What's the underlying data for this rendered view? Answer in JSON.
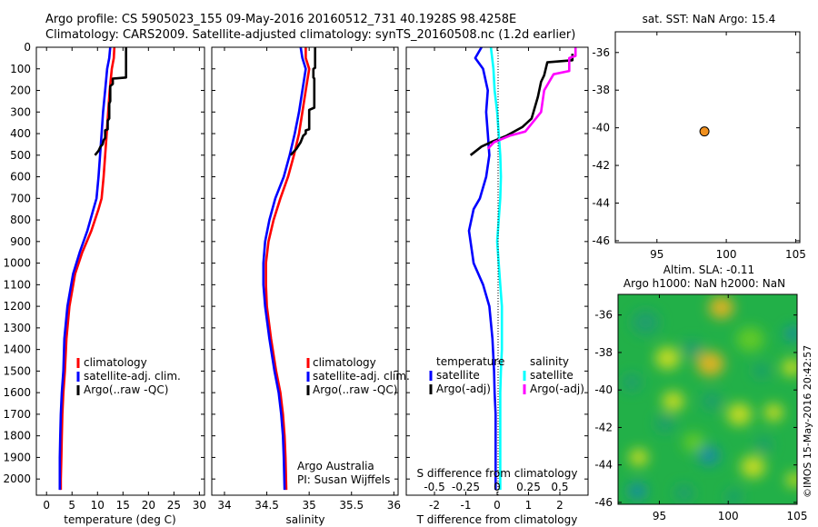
{
  "header": {
    "title": "Argo profile: CS 5905023_155 09-May-2016 20160512_731 40.1928S 98.4258E",
    "subtitle": "Climatology: CARS2009. Satellite-adjusted climatology: synTS_20160508.nc (1.2d earlier)"
  },
  "credit": {
    "line1": "Argo Australia",
    "line2": "PI: Susan Wijffels"
  },
  "stamp": "©IMOS 15-May-2016 20:42:57",
  "colors": {
    "climatology": "#ff0000",
    "satellite": "#0000ff",
    "argo": "#000000",
    "salinity_sat": "#00ffff",
    "salinity_argo": "#ff00ff"
  },
  "chart_data": [
    {
      "id": "temperature",
      "type": "line",
      "xlabel": "temperature (deg C)",
      "ylabel": "",
      "xlim": [
        -2,
        31
      ],
      "ylim": [
        2075,
        0
      ],
      "xticks": [
        0,
        5,
        10,
        15,
        20,
        25,
        30
      ],
      "xtick_labels": [
        "0",
        "5",
        "10",
        "15",
        "20",
        "25",
        "30"
      ],
      "yticks": [
        0,
        100,
        200,
        300,
        400,
        500,
        600,
        700,
        800,
        900,
        1000,
        1100,
        1200,
        1300,
        1400,
        1500,
        1600,
        1700,
        1800,
        1900,
        2000
      ],
      "ytick_labels": [
        "0",
        "100",
        "200",
        "300",
        "400",
        "500",
        "600",
        "700",
        "800",
        "900",
        "1000",
        "1100",
        "1200",
        "1300",
        "1400",
        "1500",
        "1600",
        "1700",
        "1800",
        "1900",
        "2000"
      ],
      "legend": {
        "position": "bottom-right",
        "entries": [
          "climatology",
          "satellite-adj. clim.",
          "Argo(..raw -QC)"
        ]
      },
      "series": [
        {
          "name": "climatology",
          "color": "#ff0000",
          "x": [
            13.3,
            13.2,
            12.8,
            12.4,
            12.1,
            11.8,
            11.5,
            11.2,
            10.8,
            10.2,
            8.8,
            7.0,
            5.6,
            4.5,
            3.9,
            3.6,
            3.3,
            3.1,
            3.0,
            2.9,
            2.8,
            2.8
          ],
          "y": [
            0,
            50,
            100,
            200,
            300,
            400,
            500,
            600,
            700,
            750,
            850,
            950,
            1050,
            1200,
            1350,
            1500,
            1600,
            1700,
            1800,
            1900,
            2000,
            2050
          ]
        },
        {
          "name": "satellite-adj. clim.",
          "color": "#0000ff",
          "x": [
            12.5,
            12.3,
            11.9,
            11.5,
            11.1,
            10.8,
            10.5,
            10.2,
            9.8,
            9.2,
            8.0,
            6.5,
            5.2,
            4.1,
            3.5,
            3.3,
            3.0,
            2.8,
            2.7,
            2.6,
            2.6,
            2.6
          ],
          "y": [
            0,
            50,
            100,
            200,
            300,
            400,
            500,
            600,
            700,
            750,
            850,
            950,
            1050,
            1200,
            1350,
            1500,
            1600,
            1700,
            1800,
            1900,
            2000,
            2050
          ]
        },
        {
          "name": "Argo(..raw -QC)",
          "color": "#000000",
          "x": [
            15.6,
            15.6,
            15.6,
            15.6,
            13.0,
            13.0,
            12.5,
            12.5,
            12.3,
            12.3,
            12.0,
            12.0,
            11.5,
            11.5,
            11.2,
            11.0,
            10.6,
            10.2,
            9.5
          ],
          "y": [
            0,
            50,
            100,
            140,
            145,
            170,
            180,
            250,
            260,
            330,
            340,
            380,
            385,
            420,
            430,
            450,
            460,
            480,
            500
          ]
        }
      ]
    },
    {
      "id": "salinity",
      "type": "line",
      "xlabel": "salinity",
      "ylabel": "",
      "xlim": [
        33.85,
        36.05
      ],
      "ylim": [
        2075,
        0
      ],
      "xticks": [
        34,
        34.5,
        35,
        35.5,
        36
      ],
      "xtick_labels": [
        "34",
        "34.5",
        "35",
        "35.5",
        "36"
      ],
      "legend": {
        "position": "bottom-right",
        "entries": [
          "climatology",
          "satellite-adj. clim.",
          "Argo(..raw -QC)"
        ]
      },
      "series": [
        {
          "name": "climatology",
          "color": "#ff0000",
          "x": [
            34.96,
            34.96,
            35.0,
            34.96,
            34.92,
            34.88,
            34.82,
            34.75,
            34.66,
            34.58,
            34.52,
            34.49,
            34.49,
            34.5,
            34.55,
            34.61,
            34.66,
            34.69,
            34.71,
            34.72,
            34.73
          ],
          "y": [
            0,
            50,
            100,
            200,
            300,
            400,
            500,
            600,
            700,
            800,
            900,
            1000,
            1100,
            1200,
            1350,
            1500,
            1600,
            1700,
            1800,
            1900,
            2050
          ]
        },
        {
          "name": "satellite-adj. clim.",
          "color": "#0000ff",
          "x": [
            34.9,
            34.92,
            34.96,
            34.92,
            34.88,
            34.83,
            34.77,
            34.7,
            34.6,
            34.53,
            34.48,
            34.46,
            34.46,
            34.48,
            34.53,
            34.59,
            34.64,
            34.67,
            34.69,
            34.7,
            34.71
          ],
          "y": [
            0,
            50,
            100,
            200,
            300,
            400,
            500,
            600,
            700,
            800,
            900,
            1000,
            1100,
            1200,
            1350,
            1500,
            1600,
            1700,
            1800,
            1900,
            2050
          ]
        },
        {
          "name": "Argo(..raw -QC)",
          "color": "#000000",
          "x": [
            35.07,
            35.07,
            35.07,
            35.07,
            35.05,
            35.05,
            35.06,
            35.06,
            35.0,
            35.0,
            34.96,
            34.96,
            34.93,
            34.9,
            34.85,
            34.78
          ],
          "y": [
            0,
            40,
            80,
            95,
            100,
            140,
            145,
            280,
            290,
            380,
            385,
            400,
            410,
            440,
            470,
            500
          ]
        }
      ]
    },
    {
      "id": "difference",
      "type": "line",
      "xlabel": "T difference from climatology",
      "x2label": "S difference from climatology",
      "ylabel": "",
      "xlim": [
        -2.9,
        2.9
      ],
      "ylim": [
        2075,
        0
      ],
      "xticks": [
        -2,
        -1,
        0,
        1,
        2
      ],
      "xtick_labels": [
        "-2",
        "-1",
        "0",
        "1",
        "2"
      ],
      "x2ticks": [
        -0.5,
        -0.25,
        0,
        0.25,
        0.5
      ],
      "x2tick_labels": [
        "-0.5",
        "-0.25",
        "0",
        "0.25",
        "0.5"
      ],
      "x2_scale": 0.25,
      "legend": {
        "position": "bottom",
        "headings": [
          "temperature",
          "salinity"
        ],
        "entries": [
          "satellite",
          "Argo(-adj)",
          "satellite",
          "Argo(-adj)"
        ]
      },
      "series": [
        {
          "name": "temperature satellite",
          "color": "#0000ff",
          "x": [
            -0.5,
            -0.7,
            -0.45,
            -0.3,
            -0.35,
            -0.3,
            -0.25,
            -0.35,
            -0.55,
            -0.75,
            -0.9,
            -0.75,
            -0.45,
            -0.25,
            -0.15,
            -0.1,
            -0.08,
            -0.05,
            -0.05,
            -0.05,
            -0.05
          ],
          "y": [
            0,
            50,
            100,
            200,
            300,
            400,
            500,
            600,
            700,
            750,
            850,
            1000,
            1100,
            1200,
            1350,
            1500,
            1600,
            1700,
            1800,
            1900,
            2050
          ]
        },
        {
          "name": "temperature Argo(-adj)",
          "color": "#000000",
          "x": [
            2.4,
            2.4,
            1.6,
            1.5,
            1.4,
            1.3,
            1.1,
            0.8,
            0.3,
            -0.2,
            -0.5,
            -0.85
          ],
          "y": [
            30,
            60,
            70,
            130,
            160,
            230,
            330,
            370,
            410,
            440,
            460,
            500
          ]
        },
        {
          "name": "salinity satellite",
          "color": "#00ffff",
          "x": [
            -0.2,
            -0.12,
            -0.08,
            0.0,
            0.05,
            0.1,
            0.12,
            0.1,
            0.05,
            0.0,
            0.05,
            0.1,
            0.15,
            0.15,
            0.15,
            0.12,
            0.1,
            0.1,
            0.1
          ],
          "y": [
            0,
            100,
            200,
            300,
            400,
            500,
            600,
            700,
            800,
            900,
            1000,
            1100,
            1200,
            1300,
            1400,
            1500,
            1600,
            1800,
            2050
          ]
        },
        {
          "name": "salinity Argo(-adj)",
          "color": "#ff00ff",
          "x": [
            2.5,
            2.5,
            2.3,
            2.3,
            1.8,
            1.5,
            1.4,
            0.9,
            0.4,
            -0.1,
            -0.3
          ],
          "y": [
            0,
            40,
            50,
            110,
            125,
            200,
            300,
            390,
            410,
            440,
            470
          ]
        }
      ]
    },
    {
      "id": "position",
      "type": "scatter",
      "title": "sat. SST: NaN Argo: 15.4",
      "xlim": [
        92,
        105.3
      ],
      "ylim": [
        -46.1,
        -34.9
      ],
      "xticks": [
        95,
        100,
        105
      ],
      "xtick_labels": [
        "95",
        "100",
        "105"
      ],
      "yticks": [
        -36,
        -38,
        -40,
        -42,
        -44,
        -46
      ],
      "ytick_labels": [
        "-36",
        "-38",
        "-40",
        "-42",
        "-44",
        "-46"
      ],
      "points": [
        {
          "x": 98.4258,
          "y": -40.1928,
          "color": "#f0901e"
        }
      ]
    },
    {
      "id": "sla",
      "type": "heatmap",
      "title": "Altim. SLA: -0.11",
      "subtitle": "Argo h1000: NaN h2000: NaN",
      "xlim": [
        92,
        105
      ],
      "ylim": [
        -46.1,
        -34.9
      ],
      "xticks": [
        95,
        100,
        105
      ],
      "xtick_labels": [
        "95",
        "100",
        "105"
      ],
      "yticks": [
        -36,
        -38,
        -40,
        -42,
        -44,
        -46
      ],
      "ytick_labels": [
        "-36",
        "-38",
        "-40",
        "-42",
        "-44",
        "-46"
      ],
      "colormap": [
        "#1a8ca6",
        "#22b048",
        "#66cc22",
        "#d4e01e",
        "#f0b41e"
      ],
      "blobs": [
        {
          "x": 99.5,
          "y": -35.6,
          "v": 1.0,
          "r": 0.9
        },
        {
          "x": 98.7,
          "y": -38.6,
          "v": 0.8,
          "r": 1.0
        },
        {
          "x": 101.6,
          "y": -37.3,
          "v": 0.5,
          "r": 1.0
        },
        {
          "x": 95.6,
          "y": -38.3,
          "v": 0.55,
          "r": 0.9
        },
        {
          "x": 104.6,
          "y": -38.8,
          "v": 0.6,
          "r": 0.7
        },
        {
          "x": 96.0,
          "y": -40.6,
          "v": 0.65,
          "r": 0.8
        },
        {
          "x": 100.8,
          "y": -41.3,
          "v": 0.6,
          "r": 0.9
        },
        {
          "x": 103.3,
          "y": -41.2,
          "v": 0.7,
          "r": 0.7
        },
        {
          "x": 97.5,
          "y": -42.8,
          "v": 0.5,
          "r": 0.8
        },
        {
          "x": 93.5,
          "y": -43.6,
          "v": 0.6,
          "r": 0.7
        },
        {
          "x": 101.8,
          "y": -44.1,
          "v": 0.55,
          "r": 0.9
        },
        {
          "x": 104.8,
          "y": -44.8,
          "v": 0.6,
          "r": 0.6
        },
        {
          "x": 94.0,
          "y": -36.4,
          "v": -0.35,
          "r": 1.0
        },
        {
          "x": 97.4,
          "y": -37.8,
          "v": -0.3,
          "r": 0.7
        },
        {
          "x": 104.7,
          "y": -37.0,
          "v": -0.7,
          "r": 0.6
        },
        {
          "x": 93.0,
          "y": -39.6,
          "v": -0.4,
          "r": 0.7
        },
        {
          "x": 98.8,
          "y": -40.6,
          "v": -0.55,
          "r": 0.7
        },
        {
          "x": 95.4,
          "y": -41.8,
          "v": -0.5,
          "r": 0.7
        },
        {
          "x": 98.6,
          "y": -43.5,
          "v": -0.75,
          "r": 0.8
        },
        {
          "x": 93.4,
          "y": -45.4,
          "v": -0.8,
          "r": 0.7
        },
        {
          "x": 96.8,
          "y": -45.5,
          "v": -0.4,
          "r": 0.7
        },
        {
          "x": 102.6,
          "y": -42.9,
          "v": -0.45,
          "r": 0.6
        },
        {
          "x": 100.4,
          "y": -45.7,
          "v": -0.4,
          "r": 0.6
        },
        {
          "x": 102.4,
          "y": -39.0,
          "v": -0.3,
          "r": 0.6
        }
      ]
    }
  ]
}
